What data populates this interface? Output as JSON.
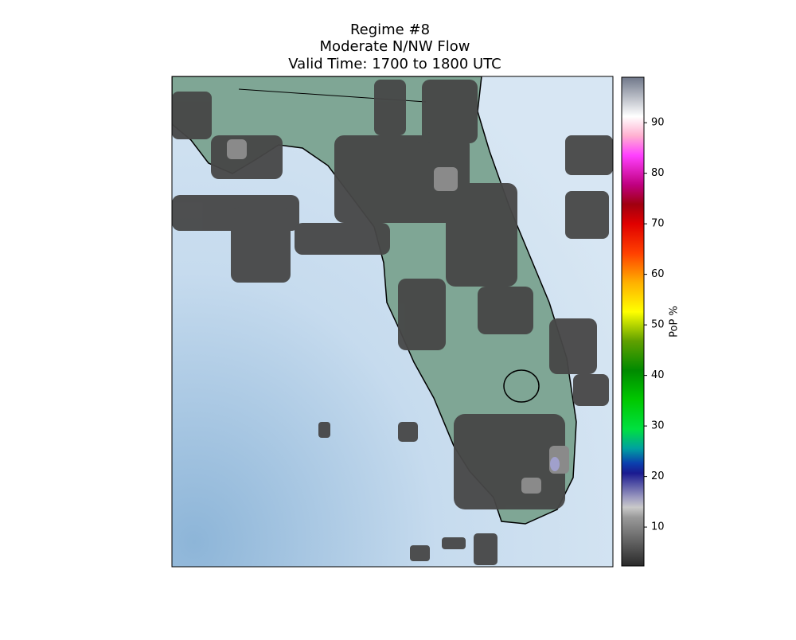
{
  "title": [
    "Regime #8",
    "Moderate N/NW Flow",
    "Valid Time: 1700 to 1800 UTC"
  ],
  "colorbar": {
    "label": "PoP %",
    "lim": [
      2.3,
      99
    ],
    "ticks": [
      10,
      20,
      30,
      40,
      50,
      60,
      70,
      80,
      90
    ]
  }
}
